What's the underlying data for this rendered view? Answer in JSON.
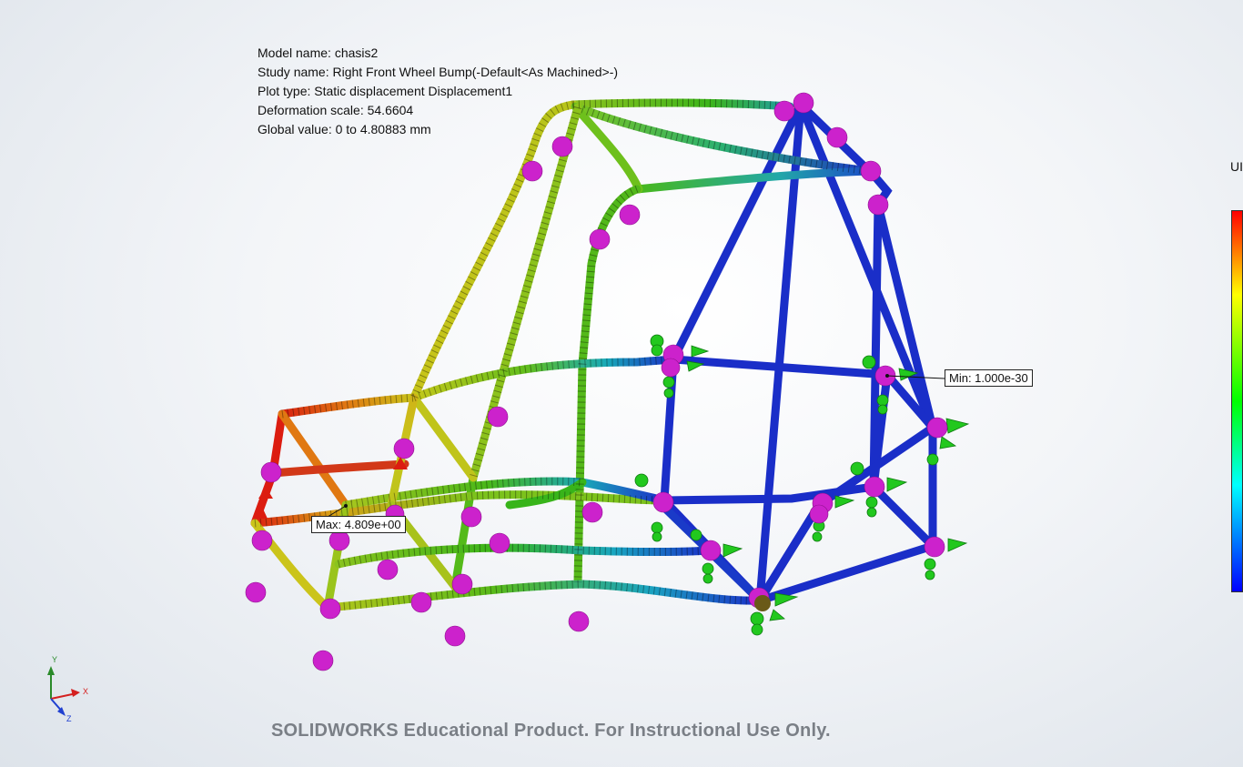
{
  "study_info": {
    "model_name": "Model name: chasis2",
    "study_name": "Study name: Right Front Wheel Bump(-Default<As Machined>-)",
    "plot_type": "Plot type: Static displacement Displacement1",
    "deformation_scale": "Deformation scale: 54.6604",
    "global_value": "Global value: 0 to 4.80883 mm"
  },
  "probes": {
    "max_label": "Max: 4.809e+00",
    "min_label": "Min: 1.000e-30"
  },
  "legend": {
    "title": "UI",
    "colors": [
      "#ff0000",
      "#ffff00",
      "#00ff00",
      "#00ffff",
      "#0000ff"
    ]
  },
  "triad": {
    "x": "X",
    "y": "Y",
    "z": "Z"
  },
  "watermark": "SOLIDWORKS Educational Product. For Instructional Use Only.",
  "colors": {
    "red": "#dd1010",
    "orange": "#e86a10",
    "yellow": "#c8c81a",
    "yellow_green": "#a8c820",
    "green": "#38b418",
    "teal": "#1aa6b0",
    "cyan": "#20b8d8",
    "blue": "#1a2ec8",
    "fixture_purple": "#cc22cc",
    "load_green": "#22c81e"
  }
}
